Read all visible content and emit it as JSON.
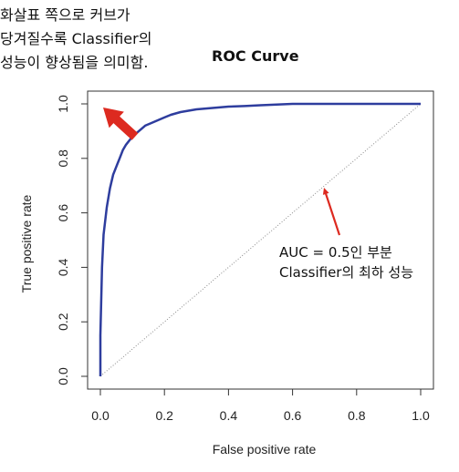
{
  "annotations": {
    "top_left": [
      "화살표 쪽으로 커브가",
      "당겨질수록 Classifier의",
      "성능이 향상됨을 의미함."
    ],
    "bottom_right": [
      "AUC = 0.5인 부분",
      "Classifier의 최하 성능"
    ]
  },
  "colors": {
    "roc_line": "#2e3d9e",
    "diagonal": "#8a8a8a",
    "arrow": "#dd2a20",
    "axis": "#333333"
  },
  "chart_data": {
    "type": "line",
    "title": "ROC Curve",
    "xlabel": "False positive rate",
    "ylabel": "True positive rate",
    "xlim": [
      0,
      1
    ],
    "ylim": [
      0,
      1
    ],
    "x_ticks": [
      "0.0",
      "0.2",
      "0.4",
      "0.6",
      "0.8",
      "1.0"
    ],
    "y_ticks": [
      "0.0",
      "0.2",
      "0.4",
      "0.6",
      "0.8",
      "1.0"
    ],
    "grid": false,
    "series": [
      {
        "x": [
          0.0,
          0.0,
          0.005,
          0.01,
          0.02,
          0.03,
          0.04,
          0.05,
          0.06,
          0.07,
          0.08,
          0.1,
          0.12,
          0.14,
          0.16,
          0.18,
          0.2,
          0.22,
          0.25,
          0.3,
          0.35,
          0.4,
          0.45,
          0.5,
          0.6,
          0.7,
          0.8,
          0.9,
          1.0
        ],
        "y": [
          0.0,
          0.15,
          0.4,
          0.52,
          0.62,
          0.69,
          0.74,
          0.77,
          0.8,
          0.83,
          0.85,
          0.88,
          0.9,
          0.92,
          0.93,
          0.94,
          0.95,
          0.96,
          0.97,
          0.98,
          0.985,
          0.99,
          0.992,
          0.995,
          1.0,
          1.0,
          1.0,
          1.0,
          1.0
        ]
      }
    ],
    "reference_line": {
      "x": [
        0,
        1
      ],
      "y": [
        0,
        1
      ],
      "style": "dotted"
    }
  }
}
